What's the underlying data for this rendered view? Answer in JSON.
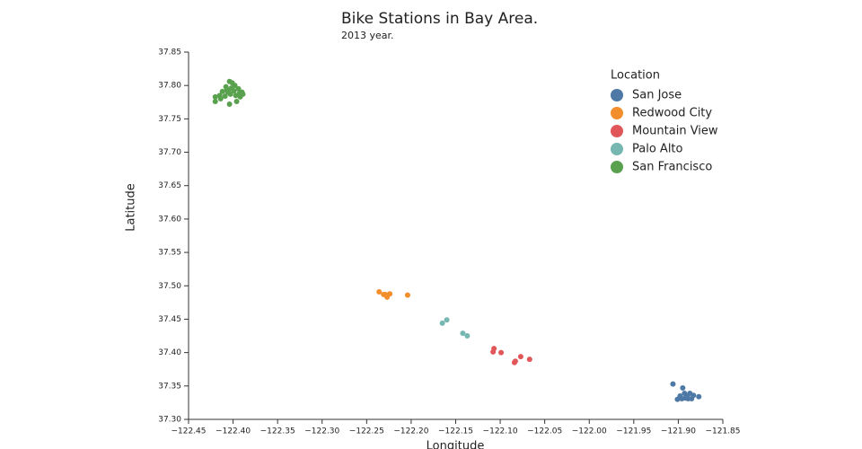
{
  "chart_data": {
    "type": "scatter",
    "title": "Bike Stations in Bay Area.",
    "subtitle": "2013 year.",
    "x_label": "Longitude",
    "y_label": "Latitude",
    "legend_title": "Location",
    "legend": "top-right",
    "xlim": [
      -122.45,
      -121.85
    ],
    "xticks": [
      {
        "value": -122.45,
        "label": "−122.45"
      },
      {
        "value": -122.4,
        "label": "−122.40"
      },
      {
        "value": -122.35,
        "label": "−122.35"
      },
      {
        "value": -122.3,
        "label": "−122.30"
      },
      {
        "value": -122.25,
        "label": "−122.25"
      },
      {
        "value": -122.2,
        "label": "−122.20"
      },
      {
        "value": -122.15,
        "label": "−122.15"
      },
      {
        "value": -122.1,
        "label": "−122.10"
      },
      {
        "value": -122.05,
        "label": "−122.05"
      },
      {
        "value": -122,
        "label": "−122.00"
      },
      {
        "value": -121.95,
        "label": "−121.95"
      },
      {
        "value": -121.9,
        "label": "−121.90"
      },
      {
        "value": -121.85,
        "label": "−121.85"
      }
    ],
    "ylim": [
      37.3,
      37.85
    ],
    "yticks": [
      {
        "value": 37.3,
        "label": "37.30"
      },
      37.35,
      {
        "value": 37.4,
        "label": "37.40"
      },
      37.45,
      {
        "value": 37.5,
        "label": "37.50"
      },
      37.55,
      {
        "value": 37.6,
        "label": "37.60"
      },
      37.65,
      {
        "value": 37.7,
        "label": "37.70"
      },
      37.75,
      {
        "value": 37.8,
        "label": "37.80"
      },
      37.85
    ],
    "series": [
      {
        "name": "San Jose",
        "color": "#4e79a7",
        "x": [
          -121.906,
          -121.895,
          -121.901,
          -121.898,
          -121.893,
          -121.89,
          -121.887,
          -121.885,
          -121.877,
          -121.892,
          -121.896,
          -121.889,
          -121.883
        ],
        "values": [
          37.353,
          37.347,
          37.33,
          37.335,
          37.339,
          37.335,
          37.339,
          37.331,
          37.334,
          37.332,
          37.331,
          37.331,
          37.336
        ]
      },
      {
        "name": "Redwood City",
        "color": "#f28e2b",
        "x": [
          -122.236,
          -122.231,
          -122.227,
          -122.224,
          -122.204,
          -122.229
        ],
        "values": [
          37.491,
          37.487,
          37.483,
          37.488,
          37.486,
          37.487
        ]
      },
      {
        "name": "Mountain View",
        "color": "#e15759",
        "x": [
          -122.107,
          -122.108,
          -122.099,
          -122.083,
          -122.077,
          -122.084,
          -122.067
        ],
        "values": [
          37.406,
          37.401,
          37.4,
          37.387,
          37.394,
          37.385,
          37.39
        ]
      },
      {
        "name": "Palo Alto",
        "color": "#76b7b2",
        "x": [
          -122.165,
          -122.16,
          -122.142,
          -122.137
        ],
        "values": [
          37.444,
          37.449,
          37.429,
          37.425
        ]
      },
      {
        "name": "San Francisco",
        "color": "#59a14f",
        "x": [
          -122.404,
          -122.398,
          -122.408,
          -122.402,
          -122.394,
          -122.412,
          -122.406,
          -122.399,
          -122.39,
          -122.42,
          -122.415,
          -122.409,
          -122.403,
          -122.397,
          -122.392,
          -122.42,
          -122.404,
          -122.396,
          -122.405,
          -122.401,
          -122.407,
          -122.393,
          -122.414,
          -122.389
        ],
        "values": [
          37.806,
          37.8,
          37.798,
          37.796,
          37.795,
          37.791,
          37.79,
          37.792,
          37.79,
          37.783,
          37.785,
          37.784,
          37.787,
          37.785,
          37.783,
          37.776,
          37.772,
          37.776,
          37.793,
          37.804,
          37.793,
          37.788,
          37.78,
          37.787
        ]
      }
    ]
  }
}
